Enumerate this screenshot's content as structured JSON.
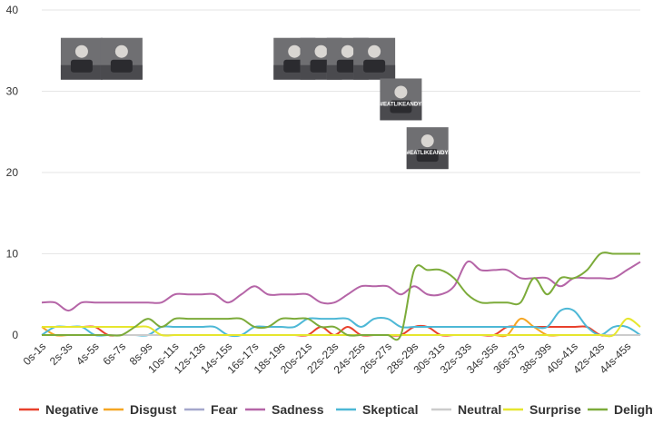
{
  "chart_data": {
    "type": "line",
    "ylim": [
      0,
      40
    ],
    "yticks": [
      0,
      10,
      20,
      30,
      40
    ],
    "categories": [
      "0s-1s",
      "1s-2s",
      "2s-3s",
      "3s-4s",
      "4s-5s",
      "5s-6s",
      "6s-7s",
      "7s-8s",
      "8s-9s",
      "9s-10s",
      "10s-11s",
      "11s-12s",
      "12s-13s",
      "13s-14s",
      "14s-15s",
      "15s-16s",
      "16s-17s",
      "17s-18s",
      "18s-19s",
      "19s-20s",
      "20s-21s",
      "21s-22s",
      "22s-23s",
      "23s-24s",
      "24s-25s",
      "25s-26s",
      "26s-27s",
      "27s-28s",
      "28s-29s",
      "29s-30s",
      "30s-31s",
      "31s-32s",
      "32s-33s",
      "33s-34s",
      "34s-35s",
      "35s-36s",
      "36s-37s",
      "37s-38s",
      "38s-39s",
      "39s-40s",
      "40s-41s",
      "41s-42s",
      "42s-43s",
      "43s-44s",
      "44s-45s",
      "45s-46s"
    ],
    "xtick_labels": [
      "0s-1s",
      "2s-3s",
      "4s-5s",
      "6s-7s",
      "8s-9s",
      "10s-11s",
      "12s-13s",
      "14s-15s",
      "16s-17s",
      "18s-19s",
      "20s-21s",
      "22s-23s",
      "24s-25s",
      "26s-27s",
      "28s-29s",
      "30s-31s",
      "32s-33s",
      "34s-35s",
      "36s-37s",
      "38s-39s",
      "40s-41s",
      "42s-43s",
      "44s-45s"
    ],
    "grid": true,
    "legend_position": "bottom",
    "series": [
      {
        "name": "Negative",
        "color": "#e8412c",
        "values": [
          1,
          1,
          1,
          1,
          1,
          0,
          0,
          0,
          0,
          0,
          0,
          0,
          0,
          0,
          0,
          0,
          0,
          0,
          0,
          0,
          0,
          1,
          0,
          1,
          0,
          0,
          0,
          0,
          1,
          1,
          0,
          0,
          0,
          0,
          0,
          1,
          1,
          1,
          1,
          1,
          1,
          1,
          0,
          0,
          0,
          0
        ]
      },
      {
        "name": "Disgust",
        "color": "#f5a623",
        "values": [
          1,
          0,
          0,
          0,
          0,
          0,
          0,
          0,
          0,
          0,
          0,
          0,
          0,
          0,
          0,
          0,
          0,
          0,
          0,
          0,
          0,
          0,
          0,
          0,
          0,
          0,
          0,
          0,
          0,
          0,
          0,
          0,
          0,
          0,
          0,
          0,
          2,
          1,
          0,
          0,
          0,
          0,
          0,
          0,
          0,
          0
        ]
      },
      {
        "name": "Fear",
        "color": "#a4a7cc",
        "values": [
          0,
          0,
          0,
          0,
          0,
          0,
          0,
          0,
          0,
          0,
          0,
          0,
          0,
          0,
          0,
          0,
          0,
          0,
          0,
          0,
          0,
          0,
          0,
          0,
          0,
          0,
          0,
          0,
          0,
          0,
          0,
          0,
          0,
          0,
          0,
          0,
          0,
          0,
          0,
          0,
          0,
          0,
          0,
          0,
          0,
          0
        ]
      },
      {
        "name": "Sadness",
        "color": "#b565a7",
        "values": [
          4,
          4,
          3,
          4,
          4,
          4,
          4,
          4,
          4,
          4,
          5,
          5,
          5,
          5,
          4,
          5,
          6,
          5,
          5,
          5,
          5,
          4,
          4,
          5,
          6,
          6,
          6,
          5,
          6,
          5,
          5,
          6,
          9,
          8,
          8,
          8,
          7,
          7,
          7,
          6,
          7,
          7,
          7,
          7,
          8,
          9
        ]
      },
      {
        "name": "Skeptical",
        "color": "#4db8d6",
        "values": [
          0,
          1,
          1,
          1,
          0,
          0,
          0,
          0,
          0,
          1,
          1,
          1,
          1,
          1,
          0,
          0,
          1,
          1,
          1,
          1,
          2,
          2,
          2,
          2,
          1,
          2,
          2,
          1,
          1,
          1,
          1,
          1,
          1,
          1,
          1,
          1,
          1,
          1,
          1,
          3,
          3,
          1,
          0,
          1,
          1,
          0
        ]
      },
      {
        "name": "Neutral",
        "color": "#cccccc",
        "values": [
          0,
          0,
          0,
          0,
          0,
          0,
          0,
          0,
          0,
          0,
          0,
          0,
          0,
          0,
          0,
          0,
          0,
          0,
          0,
          0,
          0,
          0,
          0,
          0,
          0,
          0,
          0,
          0,
          0,
          0,
          0,
          0,
          0,
          0,
          0,
          0,
          0,
          0,
          0,
          0,
          0,
          0,
          0,
          0,
          0,
          0
        ]
      },
      {
        "name": "Surprise",
        "color": "#e6e62e",
        "values": [
          1,
          1,
          1,
          1,
          1,
          1,
          1,
          1,
          1,
          0,
          0,
          0,
          0,
          0,
          0,
          0,
          0,
          0,
          0,
          0,
          0,
          0,
          0,
          0,
          0,
          0,
          0,
          0,
          0,
          0,
          0,
          0,
          0,
          0,
          0,
          0,
          0,
          0,
          0,
          0,
          0,
          0,
          0,
          0,
          2,
          1
        ]
      },
      {
        "name": "Delight",
        "color": "#7cab3a",
        "values": [
          0,
          0,
          0,
          0,
          0,
          0,
          0,
          1,
          2,
          1,
          2,
          2,
          2,
          2,
          2,
          2,
          1,
          1,
          2,
          2,
          2,
          1,
          1,
          0,
          0,
          0,
          0,
          0,
          8,
          8,
          8,
          7,
          5,
          4,
          4,
          4,
          4,
          7,
          5,
          7,
          7,
          8,
          10,
          10,
          10,
          10
        ]
      }
    ],
    "thumbnails": [
      {
        "x": "3s-4s",
        "y": 34,
        "caption": ""
      },
      {
        "x": "6s-7s",
        "y": 34,
        "caption": ""
      },
      {
        "x": "19s-20s",
        "y": 34,
        "caption": ""
      },
      {
        "x": "21s-22s",
        "y": 34,
        "caption": ""
      },
      {
        "x": "23s-24s",
        "y": 34,
        "caption": ""
      },
      {
        "x": "25s-26s",
        "y": 34,
        "caption": ""
      },
      {
        "x": "27s-28s",
        "y": 29,
        "caption": "#EATLIKEANDY"
      },
      {
        "x": "29s-30s",
        "y": 23,
        "caption": "#EATLIKEANDY"
      }
    ]
  }
}
